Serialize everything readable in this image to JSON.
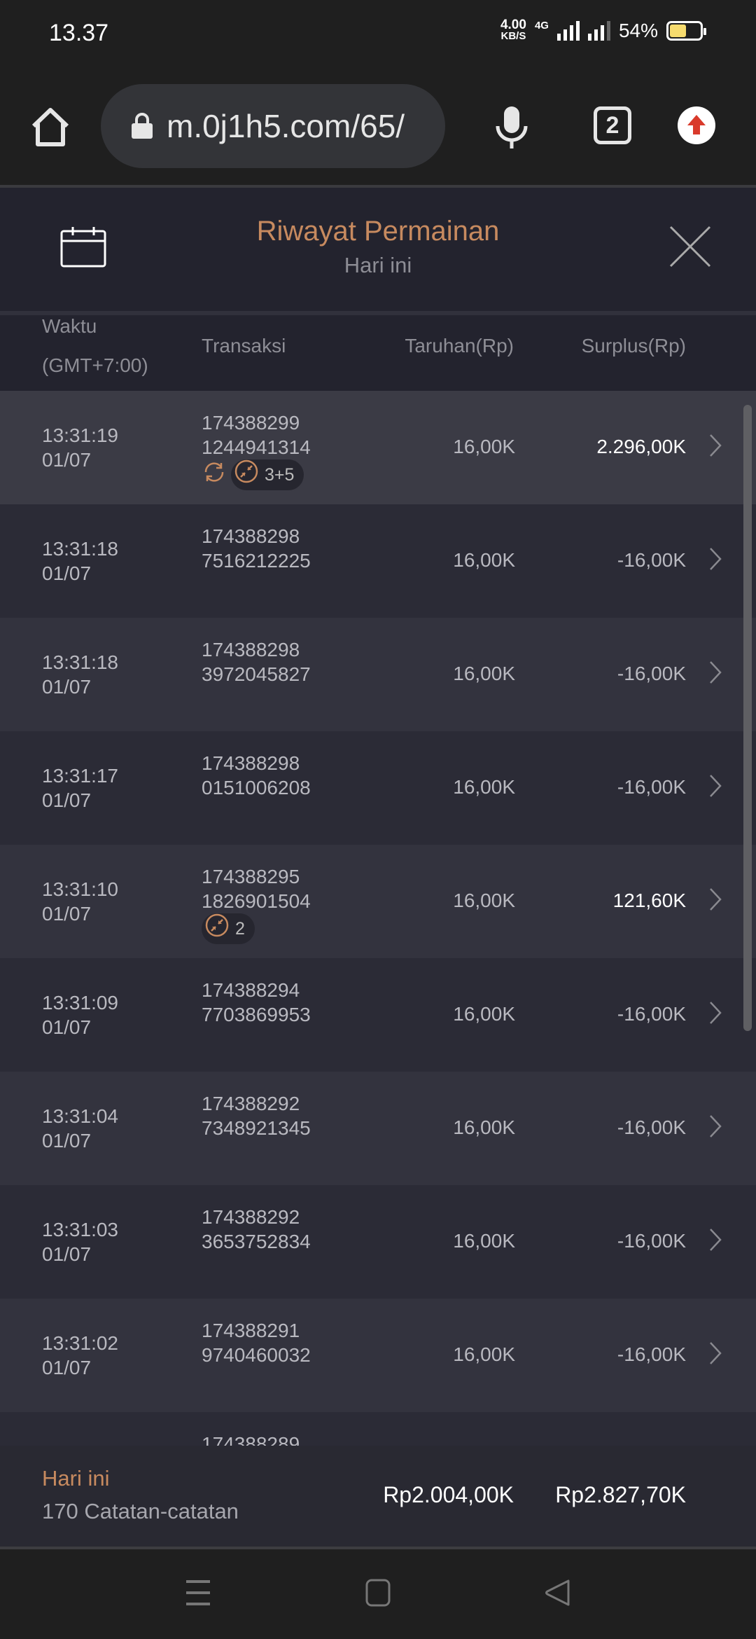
{
  "status_bar": {
    "time": "13.37",
    "speed_value": "4.00",
    "speed_unit": "KB/S",
    "network": "4G",
    "battery": "54%",
    "battery_level": 0.54
  },
  "browser": {
    "url": "m.0j1h5.com/65/",
    "tab_count": "2"
  },
  "header": {
    "title": "Riwayat Permainan",
    "subtitle": "Hari ini"
  },
  "columns": {
    "time": "Waktu",
    "timezone": "(GMT+7:00)",
    "transaction": "Transaksi",
    "bet": "Taruhan(Rp)",
    "surplus": "Surplus(Rp)"
  },
  "rows": [
    {
      "time": "13:31:19",
      "date": "01/07",
      "tx1": "174388299",
      "tx2": "1244941314",
      "bet": "16,00K",
      "surplus": "2.296,00K",
      "win": true,
      "refresh": true,
      "badge": "3+5",
      "highlight": true
    },
    {
      "time": "13:31:18",
      "date": "01/07",
      "tx1": "174388298",
      "tx2": "7516212225",
      "bet": "16,00K",
      "surplus": "-16,00K"
    },
    {
      "time": "13:31:18",
      "date": "01/07",
      "tx1": "174388298",
      "tx2": "3972045827",
      "bet": "16,00K",
      "surplus": "-16,00K"
    },
    {
      "time": "13:31:17",
      "date": "01/07",
      "tx1": "174388298",
      "tx2": "0151006208",
      "bet": "16,00K",
      "surplus": "-16,00K"
    },
    {
      "time": "13:31:10",
      "date": "01/07",
      "tx1": "174388295",
      "tx2": "1826901504",
      "bet": "16,00K",
      "surplus": "121,60K",
      "win": true,
      "badge": "2"
    },
    {
      "time": "13:31:09",
      "date": "01/07",
      "tx1": "174388294",
      "tx2": "7703869953",
      "bet": "16,00K",
      "surplus": "-16,00K"
    },
    {
      "time": "13:31:04",
      "date": "01/07",
      "tx1": "174388292",
      "tx2": "7348921345",
      "bet": "16,00K",
      "surplus": "-16,00K"
    },
    {
      "time": "13:31:03",
      "date": "01/07",
      "tx1": "174388292",
      "tx2": "3653752834",
      "bet": "16,00K",
      "surplus": "-16,00K"
    },
    {
      "time": "13:31:02",
      "date": "01/07",
      "tx1": "174388291",
      "tx2": "9740460032",
      "bet": "16,00K",
      "surplus": "-16,00K"
    },
    {
      "tx1": "174388289"
    }
  ],
  "footer": {
    "period": "Hari ini",
    "records": "170 Catatan-catatan",
    "total_bet": "Rp2.004,00K",
    "total_surplus": "Rp2.827,70K"
  },
  "colors": {
    "accent": "#c78a5f",
    "background": "#23232e",
    "row_highlight": "#3b3b45"
  }
}
